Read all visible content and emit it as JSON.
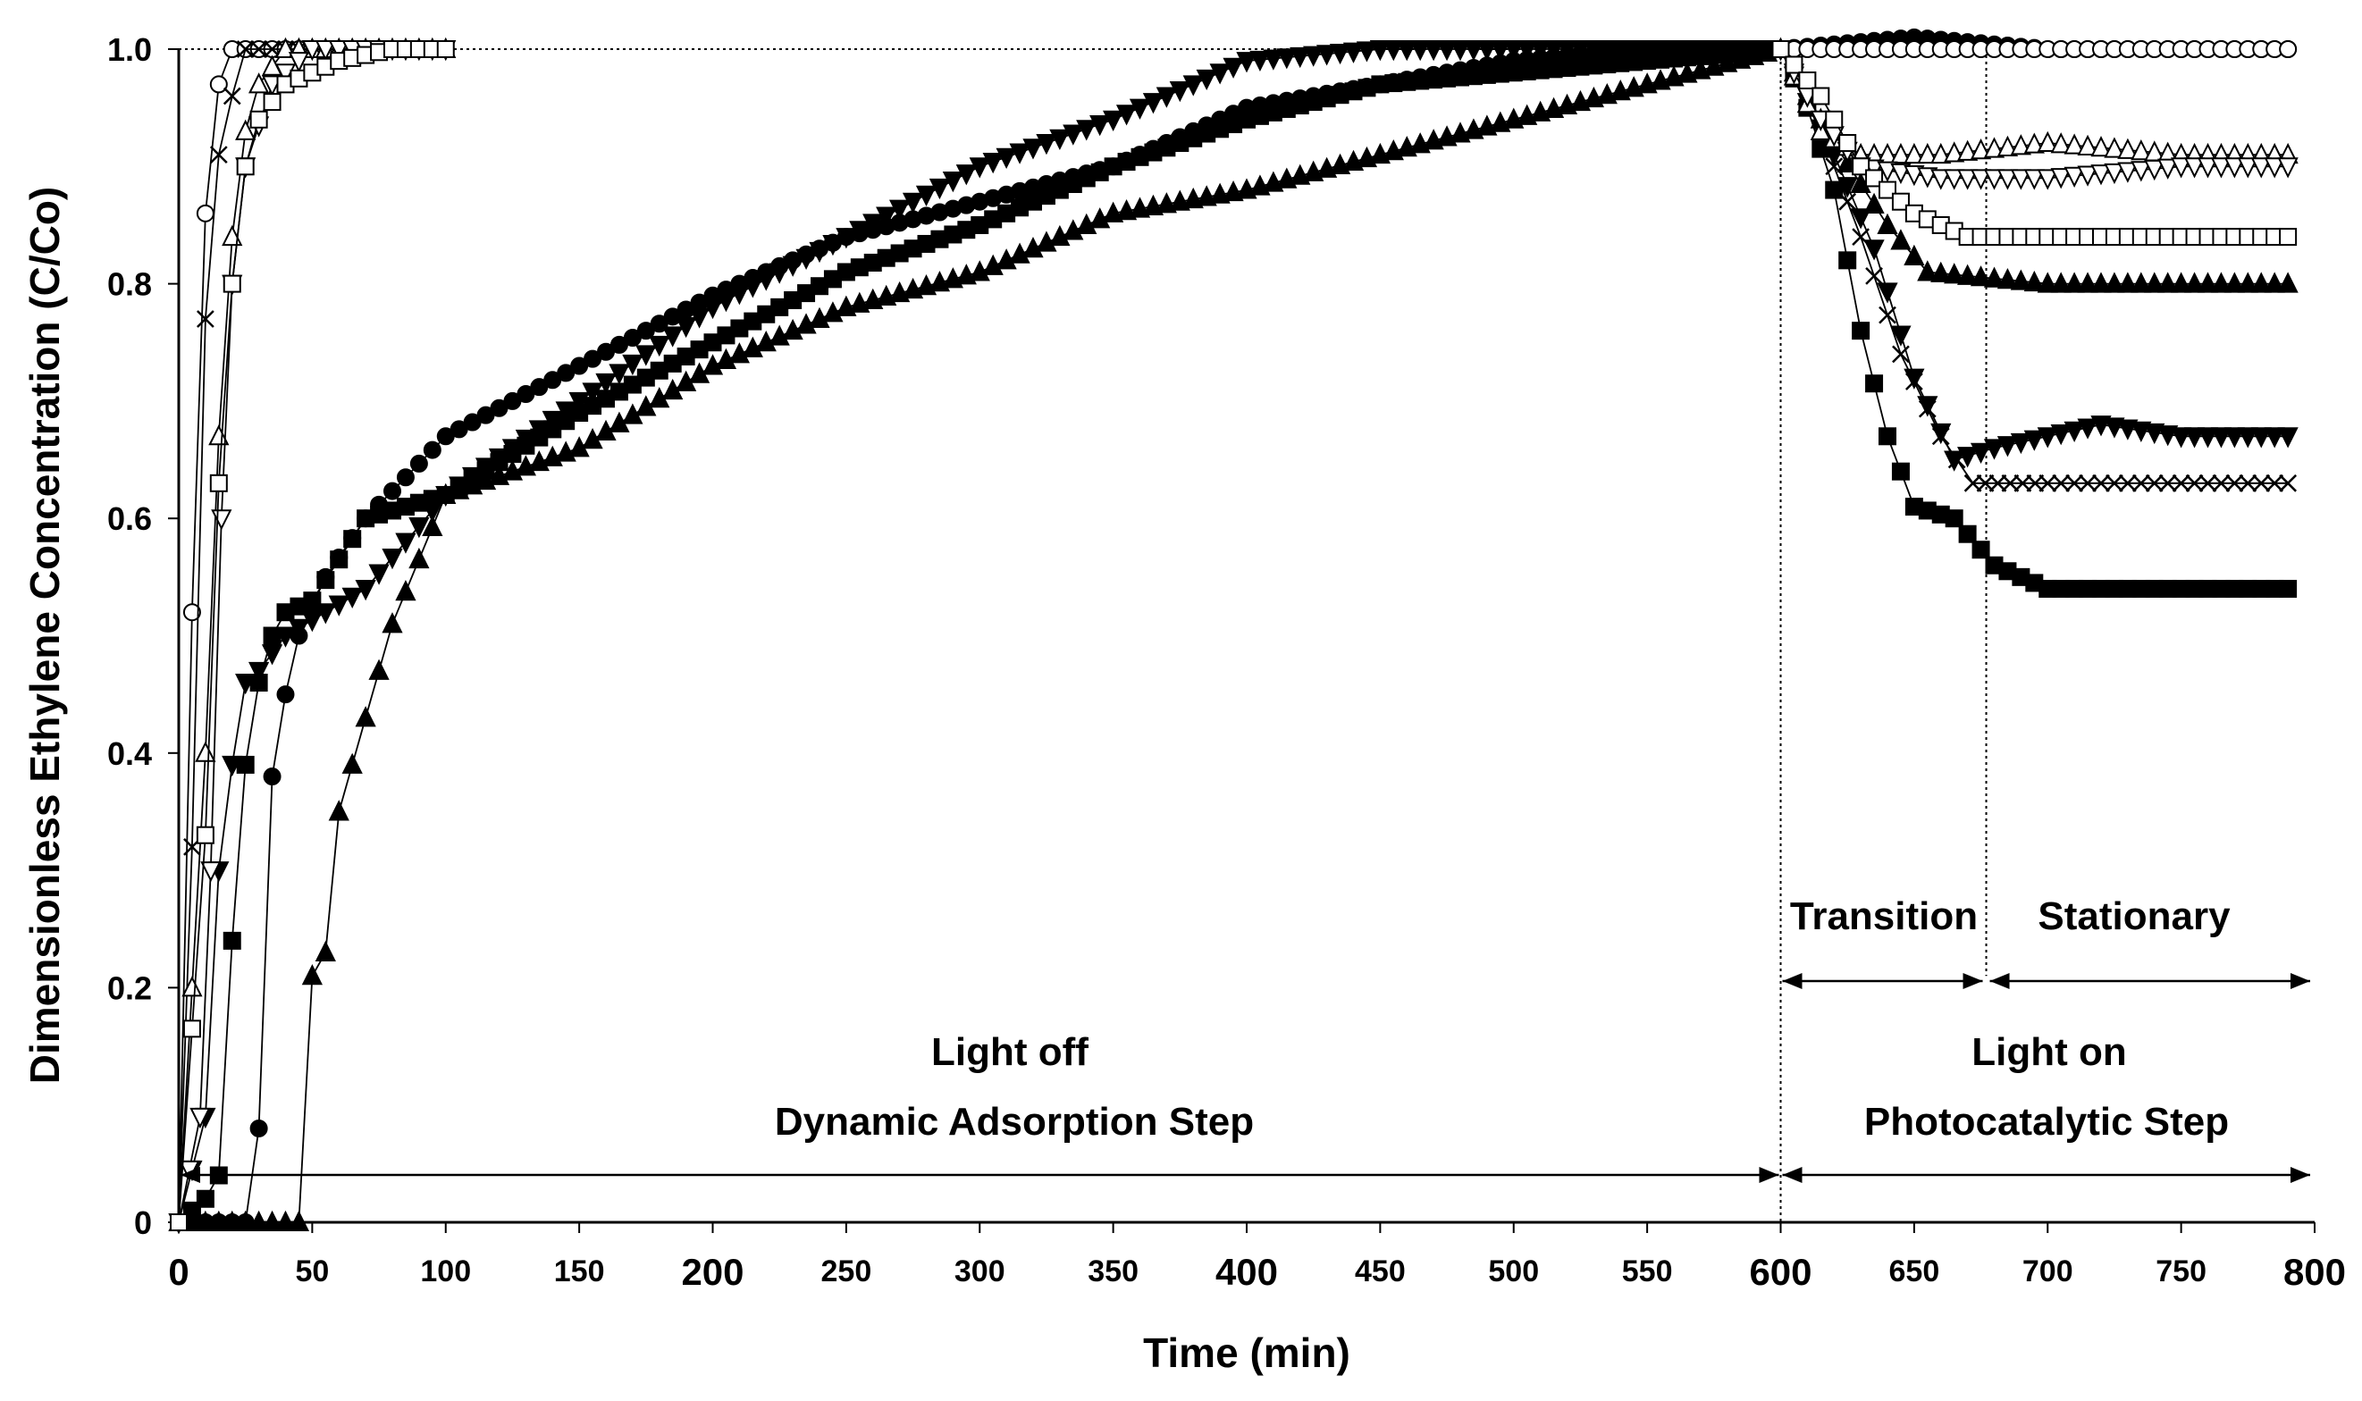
{
  "chart_data": {
    "type": "scatter",
    "title": "",
    "xlabel": "Time (min)",
    "ylabel": "Dimensionless Ethylene Concentration (C/Co)",
    "xlim": [
      0,
      800
    ],
    "ylim": [
      0,
      1
    ],
    "x_ticks": [
      "0",
      "50",
      "100",
      "150",
      "200",
      "250",
      "300",
      "350",
      "400",
      "450",
      "500",
      "550",
      "600",
      "650",
      "700",
      "750",
      "800"
    ],
    "x_tick_values": [
      0,
      50,
      100,
      150,
      200,
      250,
      300,
      350,
      400,
      450,
      500,
      550,
      600,
      650,
      700,
      750,
      800
    ],
    "y_ticks": [
      "0",
      "0.2",
      "0.4",
      "0.6",
      "0.8",
      "1.0"
    ],
    "y_tick_values": [
      0,
      0.2,
      0.4,
      0.6,
      0.8,
      1.0
    ],
    "annotations": {
      "light_off": "Light off",
      "dynamic_adsorption": "Dynamic Adsorption Step",
      "light_on": "Light on",
      "photocatalytic": "Photocatalytic Step",
      "transition": "Transition",
      "stationary": "Stationary"
    },
    "phases": {
      "light_on_time": 600,
      "stationary_start_time": 677
    },
    "series": [
      {
        "name": "filled-square",
        "marker": "square",
        "filled": true,
        "points": [
          [
            0,
            0
          ],
          [
            10,
            0.02
          ],
          [
            15,
            0.04
          ],
          [
            20,
            0.24
          ],
          [
            25,
            0.39
          ],
          [
            30,
            0.46
          ],
          [
            35,
            0.5
          ],
          [
            40,
            0.52
          ],
          [
            50,
            0.53
          ],
          [
            70,
            0.6
          ],
          [
            100,
            0.62
          ],
          [
            150,
            0.69
          ],
          [
            200,
            0.75
          ],
          [
            250,
            0.81
          ],
          [
            300,
            0.85
          ],
          [
            350,
            0.9
          ],
          [
            400,
            0.94
          ],
          [
            450,
            0.97
          ],
          [
            500,
            0.98
          ],
          [
            550,
            0.99
          ],
          [
            600,
            1.0
          ],
          [
            610,
            0.95
          ],
          [
            620,
            0.88
          ],
          [
            630,
            0.76
          ],
          [
            640,
            0.67
          ],
          [
            650,
            0.61
          ],
          [
            665,
            0.6
          ],
          [
            680,
            0.56
          ],
          [
            700,
            0.54
          ],
          [
            750,
            0.54
          ],
          [
            790,
            0.54
          ]
        ]
      },
      {
        "name": "filled-circle",
        "marker": "circle",
        "filled": true,
        "points": [
          [
            0,
            0
          ],
          [
            25,
            0
          ],
          [
            30,
            0.08
          ],
          [
            35,
            0.38
          ],
          [
            40,
            0.45
          ],
          [
            45,
            0.5
          ],
          [
            55,
            0.55
          ],
          [
            70,
            0.6
          ],
          [
            100,
            0.67
          ],
          [
            150,
            0.73
          ],
          [
            200,
            0.79
          ],
          [
            250,
            0.84
          ],
          [
            300,
            0.87
          ],
          [
            350,
            0.9
          ],
          [
            400,
            0.95
          ],
          [
            450,
            0.97
          ],
          [
            500,
            0.99
          ],
          [
            550,
            1.0
          ],
          [
            600,
            1.0
          ],
          [
            650,
            1.01
          ],
          [
            700,
            1.0
          ],
          [
            750,
            1.0
          ],
          [
            790,
            1.0
          ]
        ]
      },
      {
        "name": "filled-triangle-up",
        "marker": "triangle-up",
        "filled": true,
        "points": [
          [
            0,
            0
          ],
          [
            45,
            0
          ],
          [
            50,
            0.21
          ],
          [
            55,
            0.23
          ],
          [
            60,
            0.35
          ],
          [
            70,
            0.43
          ],
          [
            80,
            0.51
          ],
          [
            100,
            0.62
          ],
          [
            150,
            0.66
          ],
          [
            200,
            0.73
          ],
          [
            250,
            0.78
          ],
          [
            300,
            0.81
          ],
          [
            350,
            0.86
          ],
          [
            400,
            0.88
          ],
          [
            450,
            0.91
          ],
          [
            500,
            0.94
          ],
          [
            550,
            0.97
          ],
          [
            600,
            1.0
          ],
          [
            620,
            0.92
          ],
          [
            640,
            0.85
          ],
          [
            655,
            0.81
          ],
          [
            700,
            0.8
          ],
          [
            750,
            0.8
          ],
          [
            790,
            0.8
          ]
        ]
      },
      {
        "name": "filled-triangle-down",
        "marker": "triangle-down",
        "filled": true,
        "points": [
          [
            0,
            0
          ],
          [
            10,
            0.09
          ],
          [
            15,
            0.3
          ],
          [
            20,
            0.39
          ],
          [
            25,
            0.46
          ],
          [
            30,
            0.47
          ],
          [
            40,
            0.5
          ],
          [
            70,
            0.54
          ],
          [
            100,
            0.62
          ],
          [
            150,
            0.7
          ],
          [
            200,
            0.78
          ],
          [
            250,
            0.84
          ],
          [
            300,
            0.9
          ],
          [
            350,
            0.94
          ],
          [
            400,
            0.99
          ],
          [
            450,
            1.0
          ],
          [
            500,
            1.0
          ],
          [
            550,
            1.0
          ],
          [
            600,
            1.0
          ],
          [
            620,
            0.91
          ],
          [
            635,
            0.83
          ],
          [
            650,
            0.72
          ],
          [
            665,
            0.65
          ],
          [
            680,
            0.66
          ],
          [
            700,
            0.67
          ],
          [
            720,
            0.68
          ],
          [
            750,
            0.67
          ],
          [
            790,
            0.67
          ]
        ]
      },
      {
        "name": "open-circle",
        "marker": "circle",
        "filled": false,
        "points": [
          [
            0,
            0
          ],
          [
            5,
            0.52
          ],
          [
            10,
            0.86
          ],
          [
            15,
            0.97
          ],
          [
            20,
            1.0
          ],
          [
            30,
            1.0
          ],
          [
            40,
            1.0
          ],
          [
            60,
            1.0
          ],
          [
            80,
            1.0
          ],
          [
            100,
            1.0
          ],
          [
            600,
            1.0
          ],
          [
            650,
            1.0
          ],
          [
            700,
            1.0
          ],
          [
            750,
            1.0
          ],
          [
            790,
            1.0
          ]
        ]
      },
      {
        "name": "x-mark",
        "marker": "x",
        "filled": false,
        "points": [
          [
            0,
            0
          ],
          [
            5,
            0.32
          ],
          [
            10,
            0.77
          ],
          [
            15,
            0.91
          ],
          [
            20,
            0.96
          ],
          [
            25,
            1.0
          ],
          [
            40,
            1.0
          ],
          [
            60,
            1.0
          ],
          [
            80,
            1.0
          ],
          [
            100,
            1.0
          ],
          [
            600,
            1.0
          ],
          [
            615,
            0.93
          ],
          [
            630,
            0.84
          ],
          [
            645,
            0.74
          ],
          [
            660,
            0.67
          ],
          [
            672,
            0.63
          ],
          [
            700,
            0.63
          ],
          [
            750,
            0.63
          ],
          [
            790,
            0.63
          ]
        ]
      },
      {
        "name": "open-triangle-up",
        "marker": "triangle-up",
        "filled": false,
        "points": [
          [
            0,
            0
          ],
          [
            10,
            0.4
          ],
          [
            15,
            0.67
          ],
          [
            20,
            0.84
          ],
          [
            25,
            0.93
          ],
          [
            30,
            0.97
          ],
          [
            40,
            1.0
          ],
          [
            60,
            1.0
          ],
          [
            80,
            1.0
          ],
          [
            100,
            1.0
          ],
          [
            600,
            1.0
          ],
          [
            615,
            0.93
          ],
          [
            630,
            0.91
          ],
          [
            660,
            0.91
          ],
          [
            700,
            0.92
          ],
          [
            750,
            0.91
          ],
          [
            790,
            0.91
          ]
        ]
      },
      {
        "name": "open-triangle-down",
        "marker": "triangle-down",
        "filled": false,
        "points": [
          [
            0,
            0
          ],
          [
            8,
            0.09
          ],
          [
            12,
            0.3
          ],
          [
            16,
            0.6
          ],
          [
            20,
            0.8
          ],
          [
            25,
            0.9
          ],
          [
            35,
            0.97
          ],
          [
            50,
            1.0
          ],
          [
            80,
            1.0
          ],
          [
            100,
            1.0
          ],
          [
            600,
            1.0
          ],
          [
            615,
            0.94
          ],
          [
            630,
            0.9
          ],
          [
            660,
            0.89
          ],
          [
            700,
            0.89
          ],
          [
            750,
            0.9
          ],
          [
            790,
            0.9
          ]
        ]
      },
      {
        "name": "open-square",
        "marker": "square",
        "filled": false,
        "points": [
          [
            0,
            0
          ],
          [
            10,
            0.33
          ],
          [
            15,
            0.63
          ],
          [
            20,
            0.8
          ],
          [
            25,
            0.9
          ],
          [
            30,
            0.94
          ],
          [
            40,
            0.97
          ],
          [
            60,
            0.99
          ],
          [
            80,
            1.0
          ],
          [
            100,
            1.0
          ],
          [
            600,
            1.0
          ],
          [
            615,
            0.96
          ],
          [
            630,
            0.9
          ],
          [
            650,
            0.86
          ],
          [
            670,
            0.84
          ],
          [
            700,
            0.84
          ],
          [
            750,
            0.84
          ],
          [
            790,
            0.84
          ]
        ]
      }
    ]
  }
}
